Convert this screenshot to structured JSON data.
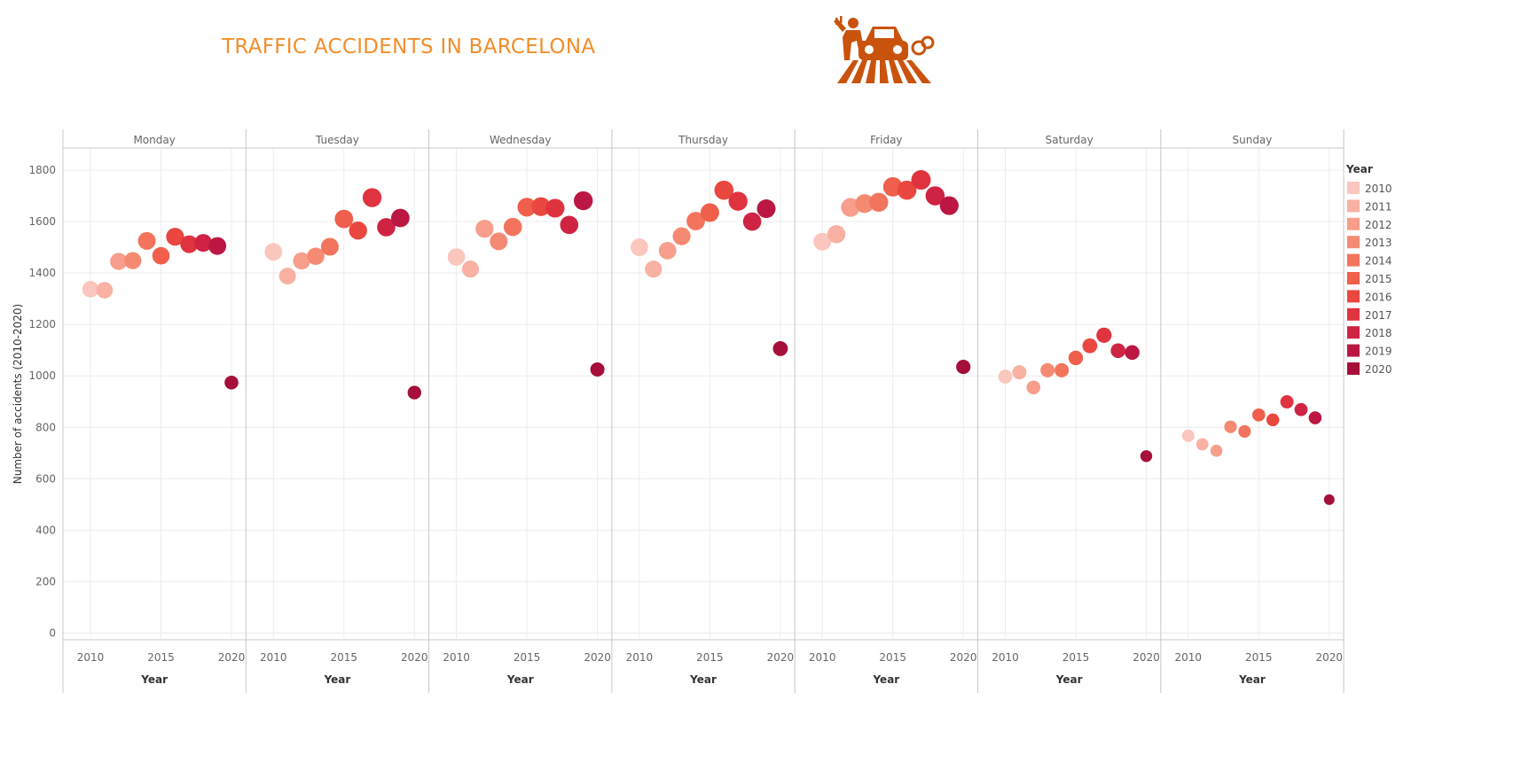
{
  "page": {
    "title": "TRAFFIC ACCIDENTS IN BARCELONA",
    "logo_icon": "car-accident-pedestrian-crossing-icon"
  },
  "chart_data": {
    "type": "scatter",
    "title": "TRAFFIC ACCIDENTS IN BARCELONA",
    "ylabel": "Number of accidents (2010-2020)",
    "xlabel": "Year",
    "ylim": [
      0,
      1900
    ],
    "yticks": [
      0,
      200,
      400,
      600,
      800,
      1000,
      1200,
      1400,
      1600,
      1800
    ],
    "xlim": [
      2008,
      2021
    ],
    "xticks": [
      2010,
      2015,
      2020
    ],
    "grid": true,
    "legend": {
      "title": "Year",
      "position": "right",
      "entries": [
        "2010",
        "2011",
        "2012",
        "2013",
        "2014",
        "2015",
        "2016",
        "2017",
        "2018",
        "2019",
        "2020"
      ]
    },
    "colors": {
      "2010": "#fbc6bd",
      "2011": "#f9b1a3",
      "2012": "#f79f8c",
      "2013": "#f58a73",
      "2014": "#f3745d",
      "2015": "#ef5f4b",
      "2016": "#e9473f",
      "2017": "#e03340",
      "2018": "#cf2344",
      "2019": "#bb1742",
      "2020": "#a50f3a"
    },
    "x": [
      2010,
      2011,
      2012,
      2013,
      2014,
      2015,
      2016,
      2017,
      2018,
      2019,
      2020
    ],
    "panels": [
      {
        "name": "Monday",
        "values": [
          1337,
          1333,
          1445,
          1448,
          1525,
          1467,
          1541,
          1512,
          1517,
          1505,
          974
        ]
      },
      {
        "name": "Tuesday",
        "values": [
          1482,
          1388,
          1447,
          1465,
          1502,
          1610,
          1565,
          1693,
          1578,
          1614,
          935
        ]
      },
      {
        "name": "Wednesday",
        "values": [
          1462,
          1415,
          1572,
          1523,
          1579,
          1656,
          1658,
          1652,
          1587,
          1681,
          1025
        ]
      },
      {
        "name": "Thursday",
        "values": [
          1500,
          1415,
          1487,
          1543,
          1602,
          1635,
          1722,
          1679,
          1600,
          1650,
          1106
        ]
      },
      {
        "name": "Friday",
        "values": [
          1522,
          1551,
          1655,
          1670,
          1675,
          1735,
          1722,
          1762,
          1700,
          1662,
          1035
        ]
      },
      {
        "name": "Saturday",
        "values": [
          997,
          1014,
          955,
          1022,
          1022,
          1070,
          1117,
          1158,
          1098,
          1091,
          688
        ]
      },
      {
        "name": "Sunday",
        "values": [
          767,
          734,
          709,
          802,
          784,
          848,
          829,
          899,
          869,
          837,
          519
        ]
      }
    ]
  }
}
